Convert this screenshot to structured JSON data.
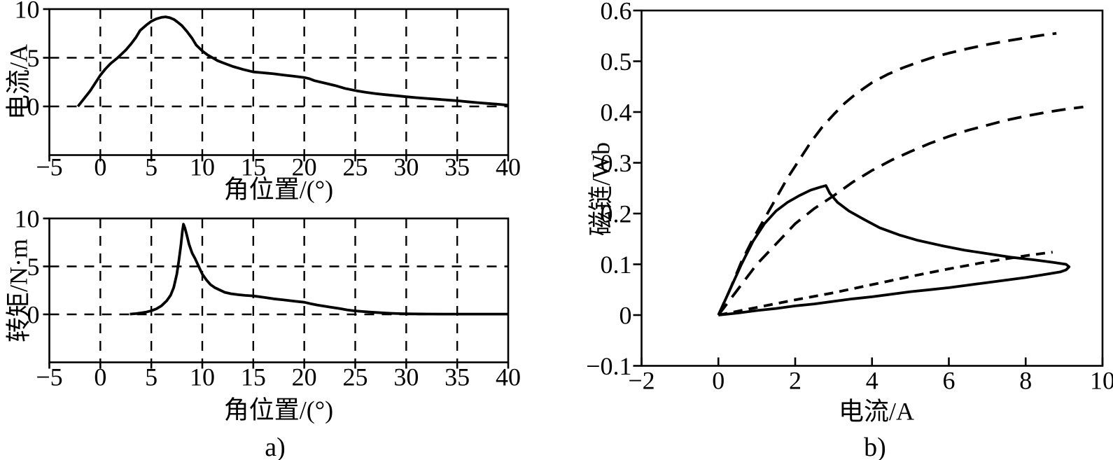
{
  "figure": {
    "background": "#ffffff",
    "line_color": "#000000",
    "captions": {
      "a": "a)",
      "b": "b)"
    }
  },
  "chart_data": [
    {
      "id": "a_top",
      "type": "line",
      "title": "",
      "xlabel": "角位置/(°)",
      "ylabel": "电流/A",
      "xlim": [
        -5,
        40
      ],
      "ylim": [
        -5,
        10
      ],
      "xticks": [
        -5,
        0,
        5,
        10,
        15,
        20,
        25,
        30,
        35,
        40
      ],
      "xtick_labels": [
        "−5",
        "0",
        "5",
        "10",
        "15",
        "20",
        "25",
        "30",
        "35",
        "40"
      ],
      "yticks": [
        0,
        5,
        10
      ],
      "ytick_labels": [
        "0",
        "5",
        "10"
      ],
      "grid": "dashed",
      "grid_x": [
        0,
        5,
        10,
        15,
        20,
        25,
        30,
        35
      ],
      "grid_y": [
        0,
        5
      ],
      "legend": "none",
      "series": [
        {
          "name": "phase-current",
          "line_style": "solid",
          "points": [
            [
              -2.2,
              0
            ],
            [
              -1.6,
              0.8
            ],
            [
              -1,
              1.6
            ],
            [
              -0.5,
              2.4
            ],
            [
              0,
              3.2
            ],
            [
              0.5,
              3.85
            ],
            [
              1,
              4.4
            ],
            [
              1.7,
              5
            ],
            [
              2.5,
              5.8
            ],
            [
              3,
              6.4
            ],
            [
              3.5,
              7.1
            ],
            [
              3.9,
              7.8
            ],
            [
              4.5,
              8.35
            ],
            [
              5,
              8.75
            ],
            [
              5.5,
              9
            ],
            [
              6,
              9.15
            ],
            [
              6.4,
              9.2
            ],
            [
              6.8,
              9.12
            ],
            [
              7.2,
              8.95
            ],
            [
              7.6,
              8.65
            ],
            [
              8,
              8.3
            ],
            [
              8.5,
              7.7
            ],
            [
              9,
              7
            ],
            [
              9.4,
              6.3
            ],
            [
              10,
              5.7
            ],
            [
              10.5,
              5.3
            ],
            [
              11,
              5
            ],
            [
              11.5,
              4.7
            ],
            [
              12,
              4.5
            ],
            [
              13,
              4.1
            ],
            [
              13.5,
              3.95
            ],
            [
              14,
              3.8
            ],
            [
              15,
              3.55
            ],
            [
              16,
              3.45
            ],
            [
              17,
              3.35
            ],
            [
              18,
              3.22
            ],
            [
              19,
              3.1
            ],
            [
              20,
              2.97
            ],
            [
              20.5,
              2.85
            ],
            [
              21,
              2.65
            ],
            [
              22,
              2.4
            ],
            [
              23,
              2.15
            ],
            [
              24,
              1.85
            ],
            [
              25,
              1.63
            ],
            [
              26,
              1.45
            ],
            [
              27,
              1.32
            ],
            [
              28,
              1.2
            ],
            [
              29,
              1.1
            ],
            [
              30,
              0.99
            ],
            [
              31,
              0.9
            ],
            [
              32,
              0.82
            ],
            [
              33,
              0.74
            ],
            [
              34,
              0.66
            ],
            [
              35,
              0.58
            ],
            [
              36,
              0.48
            ],
            [
              37,
              0.39
            ],
            [
              38,
              0.3
            ],
            [
              39,
              0.22
            ],
            [
              40,
              0.12
            ]
          ]
        }
      ]
    },
    {
      "id": "a_bottom",
      "type": "line",
      "title": "",
      "xlabel": "角位置/(°)",
      "ylabel": "转矩/N·m",
      "xlim": [
        -5,
        40
      ],
      "ylim": [
        -5,
        10
      ],
      "xticks": [
        -5,
        0,
        5,
        10,
        15,
        20,
        25,
        30,
        35,
        40
      ],
      "xtick_labels": [
        "−5",
        "0",
        "5",
        "10",
        "15",
        "20",
        "25",
        "30",
        "35",
        "40"
      ],
      "yticks": [
        0,
        5,
        10
      ],
      "ytick_labels": [
        "0",
        "5",
        "10"
      ],
      "grid": "dashed",
      "grid_x": [
        0,
        5,
        10,
        15,
        20,
        25,
        30,
        35
      ],
      "grid_y": [
        0,
        5
      ],
      "legend": "none",
      "series": [
        {
          "name": "torque",
          "line_style": "solid",
          "points": [
            [
              2.9,
              0.03
            ],
            [
              3.5,
              0.08
            ],
            [
              4,
              0.15
            ],
            [
              4.5,
              0.24
            ],
            [
              5,
              0.38
            ],
            [
              5.5,
              0.58
            ],
            [
              6,
              0.9
            ],
            [
              6.5,
              1.4
            ],
            [
              6.9,
              2
            ],
            [
              7.2,
              2.8
            ],
            [
              7.5,
              4.2
            ],
            [
              7.7,
              5.6
            ],
            [
              7.9,
              7.2
            ],
            [
              8.05,
              8.7
            ],
            [
              8.15,
              9.4
            ],
            [
              8.3,
              9
            ],
            [
              8.5,
              8.2
            ],
            [
              8.7,
              7.3
            ],
            [
              9,
              6.4
            ],
            [
              9.3,
              5.8
            ],
            [
              9.6,
              5.1
            ],
            [
              10,
              4.2
            ],
            [
              10.4,
              3.6
            ],
            [
              10.8,
              3.1
            ],
            [
              11.2,
              2.8
            ],
            [
              11.7,
              2.55
            ],
            [
              12.2,
              2.3
            ],
            [
              12.8,
              2.15
            ],
            [
              13.5,
              2.05
            ],
            [
              14.2,
              1.98
            ],
            [
              15,
              1.93
            ],
            [
              16,
              1.78
            ],
            [
              17,
              1.62
            ],
            [
              18,
              1.5
            ],
            [
              19,
              1.38
            ],
            [
              20,
              1.26
            ],
            [
              20.6,
              1.12
            ],
            [
              21.3,
              0.97
            ],
            [
              22,
              0.85
            ],
            [
              22.7,
              0.73
            ],
            [
              23.5,
              0.6
            ],
            [
              24.2,
              0.47
            ],
            [
              25,
              0.36
            ],
            [
              25.7,
              0.3
            ],
            [
              26.5,
              0.23
            ],
            [
              27.5,
              0.17
            ],
            [
              28.5,
              0.11
            ],
            [
              29.5,
              0.07
            ],
            [
              30.5,
              0.05
            ],
            [
              32,
              0.04
            ],
            [
              34,
              0.03
            ],
            [
              36,
              0.03
            ],
            [
              38,
              0.03
            ],
            [
              40,
              0.03
            ]
          ]
        }
      ]
    },
    {
      "id": "b",
      "type": "line",
      "title": "",
      "xlabel": "电流/A",
      "ylabel": "磁链/Wb",
      "xlim": [
        -2,
        10
      ],
      "ylim": [
        -0.1,
        0.6
      ],
      "xticks": [
        -2,
        0,
        2,
        4,
        6,
        8,
        10
      ],
      "xtick_labels": [
        "−2",
        "0",
        "2",
        "4",
        "6",
        "8",
        "10"
      ],
      "yticks": [
        -0.1,
        0,
        0.1,
        0.2,
        0.3,
        0.4,
        0.5,
        0.6
      ],
      "ytick_labels": [
        "−0.1",
        "0",
        "0.1",
        "0.2",
        "0.3",
        "0.4",
        "0.5",
        "0.6"
      ],
      "grid": "none",
      "grid_x": [],
      "grid_y": [],
      "legend": "none",
      "series": [
        {
          "name": "aligned-magnetization-curve",
          "line_style": "dashed",
          "points": [
            [
              0,
              0
            ],
            [
              0.3,
              0.05
            ],
            [
              0.6,
              0.105
            ],
            [
              0.9,
              0.15
            ],
            [
              1.2,
              0.19
            ],
            [
              1.5,
              0.23
            ],
            [
              1.8,
              0.27
            ],
            [
              2.1,
              0.305
            ],
            [
              2.4,
              0.34
            ],
            [
              2.7,
              0.37
            ],
            [
              3,
              0.395
            ],
            [
              3.3,
              0.418
            ],
            [
              3.6,
              0.437
            ],
            [
              4,
              0.458
            ],
            [
              4.4,
              0.474
            ],
            [
              4.8,
              0.487
            ],
            [
              5.2,
              0.498
            ],
            [
              5.6,
              0.508
            ],
            [
              6,
              0.516
            ],
            [
              6.5,
              0.525
            ],
            [
              7,
              0.533
            ],
            [
              7.5,
              0.54
            ],
            [
              8,
              0.546
            ],
            [
              8.4,
              0.551
            ],
            [
              8.8,
              0.555
            ]
          ]
        },
        {
          "name": "intermediate-magnetization-curve",
          "line_style": "dashed",
          "points": [
            [
              0,
              0
            ],
            [
              0.5,
              0.05
            ],
            [
              1,
              0.1
            ],
            [
              1.5,
              0.14
            ],
            [
              2,
              0.18
            ],
            [
              2.5,
              0.21
            ],
            [
              3,
              0.235
            ],
            [
              3.5,
              0.262
            ],
            [
              4,
              0.285
            ],
            [
              4.5,
              0.305
            ],
            [
              5,
              0.322
            ],
            [
              5.5,
              0.338
            ],
            [
              6,
              0.352
            ],
            [
              6.5,
              0.364
            ],
            [
              7,
              0.374
            ],
            [
              7.5,
              0.384
            ],
            [
              8,
              0.392
            ],
            [
              8.5,
              0.399
            ],
            [
              9,
              0.405
            ],
            [
              9.5,
              0.41
            ]
          ]
        },
        {
          "name": "unaligned-magnetization-curve",
          "line_style": "dashed-short",
          "points": [
            [
              0,
              0
            ],
            [
              1,
              0.015
            ],
            [
              2,
              0.03
            ],
            [
              3,
              0.044
            ],
            [
              4,
              0.06
            ],
            [
              5,
              0.076
            ],
            [
              6,
              0.091
            ],
            [
              7,
              0.105
            ],
            [
              8,
              0.117
            ],
            [
              8.7,
              0.124
            ]
          ]
        },
        {
          "name": "flux-linkage-loop",
          "line_style": "solid",
          "points": [
            [
              0,
              0
            ],
            [
              0.3,
              0.05
            ],
            [
              0.6,
              0.1
            ],
            [
              0.9,
              0.145
            ],
            [
              1.2,
              0.18
            ],
            [
              1.5,
              0.205
            ],
            [
              1.8,
              0.222
            ],
            [
              2.1,
              0.235
            ],
            [
              2.4,
              0.246
            ],
            [
              2.65,
              0.252
            ],
            [
              2.8,
              0.255
            ],
            [
              2.9,
              0.24
            ],
            [
              3.1,
              0.222
            ],
            [
              3.4,
              0.205
            ],
            [
              3.8,
              0.188
            ],
            [
              4.2,
              0.172
            ],
            [
              4.7,
              0.158
            ],
            [
              5.2,
              0.147
            ],
            [
              5.8,
              0.137
            ],
            [
              6.4,
              0.128
            ],
            [
              7,
              0.121
            ],
            [
              7.6,
              0.114
            ],
            [
              8.2,
              0.109
            ],
            [
              8.7,
              0.104
            ],
            [
              9.05,
              0.1
            ],
            [
              9.13,
              0.095
            ],
            [
              9.05,
              0.089
            ],
            [
              8.9,
              0.085
            ],
            [
              8.5,
              0.08
            ],
            [
              8,
              0.074
            ],
            [
              7.5,
              0.069
            ],
            [
              7,
              0.064
            ],
            [
              6.5,
              0.059
            ],
            [
              6,
              0.054
            ],
            [
              5.5,
              0.05
            ],
            [
              5,
              0.046
            ],
            [
              4.5,
              0.041
            ],
            [
              4,
              0.036
            ],
            [
              3.5,
              0.032
            ],
            [
              3,
              0.027
            ],
            [
              2.5,
              0.022
            ],
            [
              2,
              0.018
            ],
            [
              1.5,
              0.013
            ],
            [
              1,
              0.009
            ],
            [
              0.5,
              0.004
            ],
            [
              0,
              0
            ]
          ]
        }
      ]
    }
  ]
}
